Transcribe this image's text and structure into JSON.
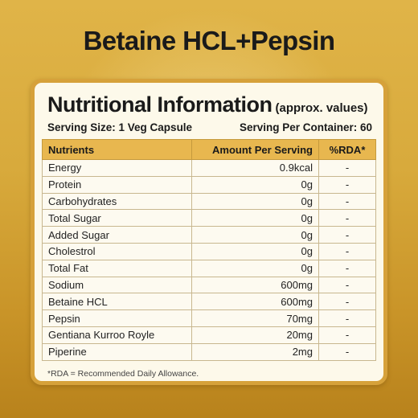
{
  "product_title": "Betaine HCL+Pepsin",
  "panel": {
    "heading": "Nutritional Information",
    "heading_note": "(approx. values)",
    "serving_size": "Serving Size: 1 Veg Capsule",
    "servings_per_container": "Serving Per Container: 60",
    "columns": [
      "Nutrients",
      "Amount Per Serving",
      "%RDA*"
    ],
    "rows": [
      {
        "nutrient": "Energy",
        "amount": "0.9kcal",
        "rda": "-"
      },
      {
        "nutrient": "Protein",
        "amount": "0g",
        "rda": "-"
      },
      {
        "nutrient": "Carbohydrates",
        "amount": "0g",
        "rda": "-"
      },
      {
        "nutrient": "Total Sugar",
        "amount": "0g",
        "rda": "-"
      },
      {
        "nutrient": "Added Sugar",
        "amount": "0g",
        "rda": "-"
      },
      {
        "nutrient": "Cholestrol",
        "amount": "0g",
        "rda": "-"
      },
      {
        "nutrient": "Total Fat",
        "amount": "0g",
        "rda": "-"
      },
      {
        "nutrient": "Sodium",
        "amount": "600mg",
        "rda": "-"
      },
      {
        "nutrient": "Betaine HCL",
        "amount": "600mg",
        "rda": "-"
      },
      {
        "nutrient": "Pepsin",
        "amount": "70mg",
        "rda": "-"
      },
      {
        "nutrient": "Gentiana Kurroo Royle",
        "amount": "20mg",
        "rda": "-"
      },
      {
        "nutrient": "Piperine",
        "amount": "2mg",
        "rda": "-"
      }
    ],
    "footnote": "*RDA = Recommended Daily Allowance."
  },
  "colors": {
    "background_gold": "#d8aa3c",
    "panel_border": "#d6a13a",
    "header_row": "#e8b74f",
    "panel_fill": "#fdf9ea"
  }
}
